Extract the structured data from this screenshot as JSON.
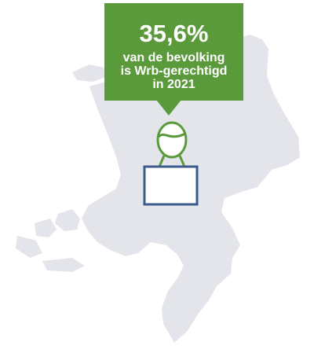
{
  "stat": {
    "value": "35,6%",
    "line1": "van de bevolking",
    "line2": "is Wrb-gerechtigd",
    "line3": "in 2021"
  },
  "icons": {
    "map": "netherlands-map-icon",
    "person": "person-with-box-icon"
  },
  "colors": {
    "accent": "#5a9a3b",
    "map": "#e3e5ea",
    "box": "#3c5a8c"
  }
}
